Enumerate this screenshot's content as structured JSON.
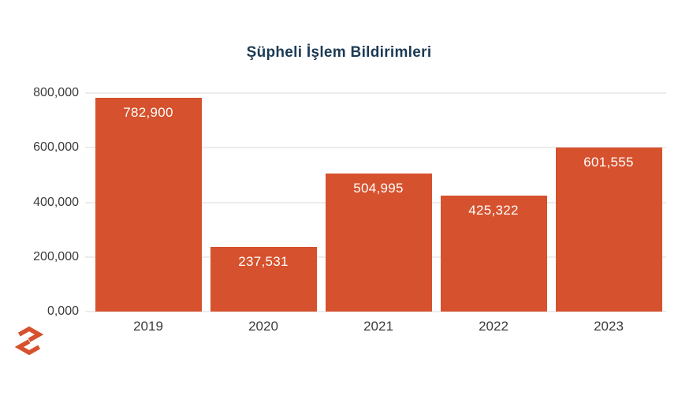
{
  "chart_data": {
    "type": "bar",
    "title": "Şüpheli İşlem Bildirimleri",
    "categories": [
      "2019",
      "2020",
      "2021",
      "2022",
      "2023"
    ],
    "values": [
      782900,
      237531,
      504995,
      425322,
      601555
    ],
    "value_labels": [
      "782,900",
      "237,531",
      "504,995",
      "425,322",
      "601,555"
    ],
    "xlabel": "",
    "ylabel": "",
    "ylim": [
      0,
      800000
    ],
    "y_ticks": [
      {
        "label": "800,000",
        "value": 800000
      },
      {
        "label": "600,000",
        "value": 600000
      },
      {
        "label": "400,000",
        "value": 400000
      },
      {
        "label": "200,000",
        "value": 200000
      },
      {
        "label": "0,000",
        "value": 0
      }
    ],
    "grid": true,
    "legend_position": "none",
    "colors": {
      "bar": "#d6512d",
      "title": "#1c3a53",
      "axis_text": "#3b3b3b",
      "bar_label": "#ffffff",
      "gridline": "#ececec"
    }
  },
  "branding": {
    "logo_icon": "s-monogram-icon",
    "logo_color": "#d6512d"
  }
}
